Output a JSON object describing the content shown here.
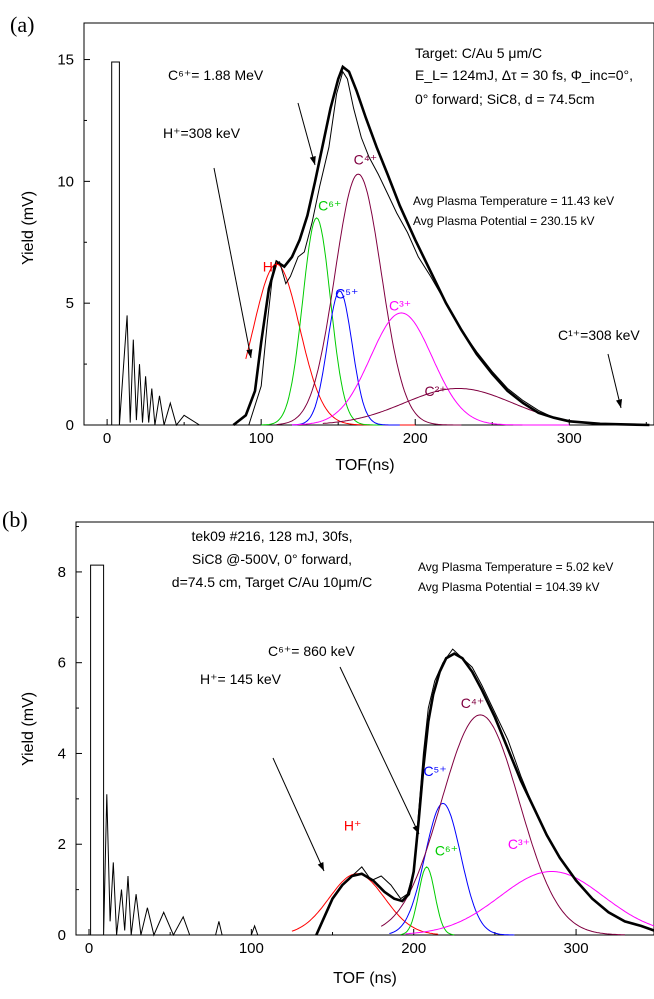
{
  "chart_data": [
    {
      "type": "line",
      "panel_label": "(a)",
      "xlabel": "TOF(ns)",
      "ylabel": "Yield (mV)",
      "xlim": [
        -15,
        355
      ],
      "ylim": [
        0,
        16.5
      ],
      "xticks": [
        0,
        100,
        200,
        300
      ],
      "yticks": [
        0,
        5,
        10,
        15
      ],
      "grid": false,
      "annotations": {
        "target_line1": "Target: C/Au 5 μm/C",
        "target_line2": "E_L= 124mJ, Δτ = 30 fs, Φ_inc=0°,",
        "target_line3": "0° forward; SiC8, d = 74.5cm",
        "avg_temp": "Avg Plasma Temperature = 11.43 keV",
        "avg_pot": "Avg Plasma Potential = 230.15 kV",
        "c6_energy": "C⁶⁺= 1.88 MeV",
        "h_energy": "H⁺=308 keV",
        "c1_energy": "C¹⁺=308 keV"
      },
      "peak_labels": [
        {
          "label": "H⁺",
          "color": "#ff0000",
          "x": 101,
          "y": 6.3
        },
        {
          "label": "C⁶⁺",
          "color": "#00cc00",
          "x": 137,
          "y": 8.8
        },
        {
          "label": "C⁴⁺",
          "color": "#800040",
          "x": 160,
          "y": 10.7
        },
        {
          "label": "C⁵⁺",
          "color": "#0000ff",
          "x": 148,
          "y": 5.2
        },
        {
          "label": "C³⁺",
          "color": "#ff00ff",
          "x": 183,
          "y": 4.7
        },
        {
          "label": "C²⁺",
          "color": "#800040",
          "x": 206,
          "y": 1.2
        }
      ],
      "series": [
        {
          "name": "H⁺",
          "color": "#ff0000",
          "shape": "gaussian",
          "amp": 6.6,
          "center": 110,
          "sigma": 15,
          "range": [
            90,
            200
          ]
        },
        {
          "name": "C⁶⁺",
          "color": "#00cc00",
          "shape": "gaussian",
          "amp": 8.5,
          "center": 136,
          "sigma": 9,
          "range": [
            100,
            180
          ]
        },
        {
          "name": "C⁵⁺",
          "color": "#0000ff",
          "shape": "gaussian",
          "amp": 5.5,
          "center": 151,
          "sigma": 8,
          "range": [
            120,
            190
          ]
        },
        {
          "name": "C⁴⁺",
          "color": "#800040",
          "shape": "gaussian",
          "amp": 10.3,
          "center": 163,
          "sigma": 15,
          "range": [
            110,
            230
          ]
        },
        {
          "name": "C³⁺",
          "color": "#ff00ff",
          "shape": "gaussian",
          "amp": 4.6,
          "center": 191,
          "sigma": 20,
          "range": [
            120,
            300
          ]
        },
        {
          "name": "C²⁺",
          "color": "#800040",
          "shape": "gaussian",
          "amp": 1.5,
          "center": 228,
          "sigma": 35,
          "range": [
            140,
            352
          ]
        }
      ],
      "raw_signal": {
        "color": "#000000",
        "points": [
          [
            -10,
            0
          ],
          [
            3,
            0
          ],
          [
            3,
            14.9
          ],
          [
            8,
            14.9
          ],
          [
            8,
            0
          ],
          [
            13,
            4.5
          ],
          [
            15,
            0.1
          ],
          [
            17,
            3.5
          ],
          [
            19,
            0.2
          ],
          [
            21,
            2.5
          ],
          [
            23,
            0.1
          ],
          [
            25,
            2.0
          ],
          [
            27,
            0.1
          ],
          [
            29,
            1.5
          ],
          [
            31,
            0
          ],
          [
            34,
            1.2
          ],
          [
            37,
            0
          ],
          [
            41,
            0.9
          ],
          [
            45,
            0
          ],
          [
            50,
            0.4
          ],
          [
            60,
            0
          ],
          [
            92,
            0
          ],
          [
            96,
            0.8
          ],
          [
            100,
            1.6
          ],
          [
            104,
            4.2
          ],
          [
            108,
            6.5
          ],
          [
            112,
            6.7
          ],
          [
            116,
            5.8
          ],
          [
            119,
            6.1
          ],
          [
            124,
            6.9
          ],
          [
            128,
            7.1
          ],
          [
            133,
            8.3
          ],
          [
            138,
            9.8
          ],
          [
            144,
            11.4
          ],
          [
            149,
            13.6
          ],
          [
            153,
            14.5
          ],
          [
            156,
            14.2
          ],
          [
            160,
            13.0
          ],
          [
            165,
            11.8
          ],
          [
            170,
            11.0
          ],
          [
            176,
            10.3
          ],
          [
            182,
            9.5
          ],
          [
            188,
            8.7
          ],
          [
            195,
            7.9
          ],
          [
            202,
            6.9
          ],
          [
            210,
            6.1
          ],
          [
            220,
            5.0
          ],
          [
            230,
            3.9
          ],
          [
            240,
            3.0
          ],
          [
            250,
            2.2
          ],
          [
            260,
            1.5
          ],
          [
            270,
            1.0
          ],
          [
            280,
            0.6
          ],
          [
            290,
            0.3
          ],
          [
            300,
            0.15
          ],
          [
            320,
            0.05
          ],
          [
            352,
            0
          ]
        ]
      },
      "total_fit": {
        "color": "#000000",
        "points": [
          [
            82,
            0
          ],
          [
            90,
            0.4
          ],
          [
            96,
            1.4
          ],
          [
            100,
            3.4
          ],
          [
            105,
            5.6
          ],
          [
            110,
            6.7
          ],
          [
            115,
            6.5
          ],
          [
            120,
            6.9
          ],
          [
            125,
            7.6
          ],
          [
            130,
            8.6
          ],
          [
            135,
            10.0
          ],
          [
            140,
            11.5
          ],
          [
            145,
            13.0
          ],
          [
            150,
            14.2
          ],
          [
            153,
            14.7
          ],
          [
            157,
            14.5
          ],
          [
            162,
            13.7
          ],
          [
            168,
            12.6
          ],
          [
            175,
            11.4
          ],
          [
            182,
            10.3
          ],
          [
            190,
            9.0
          ],
          [
            200,
            7.6
          ],
          [
            210,
            6.3
          ],
          [
            220,
            5.0
          ],
          [
            230,
            3.9
          ],
          [
            240,
            2.9
          ],
          [
            250,
            2.1
          ],
          [
            260,
            1.4
          ],
          [
            270,
            0.9
          ],
          [
            280,
            0.5
          ],
          [
            290,
            0.3
          ],
          [
            300,
            0.15
          ],
          [
            320,
            0.05
          ],
          [
            352,
            0
          ]
        ]
      }
    },
    {
      "type": "line",
      "panel_label": "(b)",
      "xlabel": "TOF (ns)",
      "ylabel": "Yield (mV)",
      "xlim": [
        -8,
        348
      ],
      "ylim": [
        0,
        9.1
      ],
      "xticks": [
        0,
        100,
        200,
        300
      ],
      "yticks": [
        0,
        2,
        4,
        6,
        8
      ],
      "grid": false,
      "annotations": {
        "shot_line1": "tek09 #216, 128 mJ, 30fs,",
        "shot_line2": "SiC8 @-500V, 0° forward,",
        "shot_line3": "d=74.5 cm, Target C/Au 10μm/C",
        "avg_temp": "Avg Plasma Temperature = 5.02 keV",
        "avg_pot": "Avg Plasma Potential = 104.39 kV",
        "c6_energy": "C⁶⁺= 860 keV",
        "h_energy": "H⁺= 145 keV"
      },
      "peak_labels": [
        {
          "label": "H⁺",
          "color": "#ff0000",
          "x": 157,
          "y": 2.3
        },
        {
          "label": "C⁵⁺",
          "color": "#0000ff",
          "x": 206,
          "y": 3.5
        },
        {
          "label": "C⁶⁺",
          "color": "#00cc00",
          "x": 213,
          "y": 1.75
        },
        {
          "label": "C⁴⁺",
          "color": "#800040",
          "x": 229,
          "y": 5.0
        },
        {
          "label": "C³⁺",
          "color": "#ff00ff",
          "x": 258,
          "y": 1.9
        }
      ],
      "series": [
        {
          "name": "H⁺",
          "color": "#ff0000",
          "shape": "gaussian",
          "amp": 1.35,
          "center": 165,
          "sigma": 17,
          "range": [
            125,
            215
          ]
        },
        {
          "name": "C⁶⁺",
          "color": "#00cc00",
          "shape": "gaussian",
          "amp": 1.5,
          "center": 208,
          "sigma": 5,
          "range": [
            192,
            225
          ]
        },
        {
          "name": "C⁵⁺",
          "color": "#0000ff",
          "shape": "gaussian",
          "amp": 2.9,
          "center": 218,
          "sigma": 11,
          "range": [
            185,
            262
          ]
        },
        {
          "name": "C⁴⁺",
          "color": "#800040",
          "shape": "gaussian",
          "amp": 4.85,
          "center": 241,
          "sigma": 24,
          "range": [
            180,
            330
          ]
        },
        {
          "name": "C³⁺",
          "color": "#ff00ff",
          "shape": "gaussian",
          "amp": 1.4,
          "center": 285,
          "sigma": 32,
          "range": [
            195,
            348
          ]
        }
      ],
      "raw_signal": {
        "color": "#000000",
        "points": [
          [
            -8,
            0
          ],
          [
            1,
            0
          ],
          [
            1,
            8.15
          ],
          [
            9,
            8.15
          ],
          [
            9,
            0
          ],
          [
            11,
            3.1
          ],
          [
            13,
            0.3
          ],
          [
            15,
            1.6
          ],
          [
            17,
            0
          ],
          [
            20,
            1.0
          ],
          [
            22,
            0.1
          ],
          [
            24,
            1.3
          ],
          [
            26,
            0
          ],
          [
            29,
            0.9
          ],
          [
            32,
            0
          ],
          [
            36,
            0.6
          ],
          [
            40,
            0
          ],
          [
            46,
            0.5
          ],
          [
            52,
            0
          ],
          [
            58,
            0.4
          ],
          [
            62,
            0
          ],
          [
            78,
            0
          ],
          [
            80,
            0.3
          ],
          [
            82,
            0
          ],
          [
            100,
            0
          ],
          [
            102,
            0.2
          ],
          [
            104,
            0
          ],
          [
            140,
            0
          ],
          [
            144,
            0.3
          ],
          [
            150,
            0.8
          ],
          [
            156,
            1.1
          ],
          [
            162,
            1.3
          ],
          [
            168,
            1.5
          ],
          [
            174,
            1.2
          ],
          [
            180,
            1.3
          ],
          [
            186,
            1.1
          ],
          [
            192,
            0.8
          ],
          [
            196,
            0.9
          ],
          [
            200,
            1.4
          ],
          [
            203,
            2.7
          ],
          [
            206,
            4.0
          ],
          [
            209,
            5.0
          ],
          [
            213,
            5.6
          ],
          [
            218,
            6.0
          ],
          [
            224,
            6.3
          ],
          [
            230,
            6.1
          ],
          [
            236,
            5.9
          ],
          [
            242,
            5.5
          ],
          [
            250,
            4.9
          ],
          [
            258,
            4.3
          ],
          [
            266,
            3.5
          ],
          [
            274,
            2.8
          ],
          [
            282,
            2.2
          ],
          [
            290,
            1.7
          ],
          [
            300,
            1.2
          ],
          [
            310,
            0.8
          ],
          [
            320,
            0.5
          ],
          [
            330,
            0.3
          ],
          [
            340,
            0.2
          ],
          [
            348,
            0.1
          ]
        ]
      },
      "total_fit": {
        "color": "#000000",
        "points": [
          [
            140,
            0
          ],
          [
            145,
            0.4
          ],
          [
            150,
            0.8
          ],
          [
            156,
            1.1
          ],
          [
            162,
            1.3
          ],
          [
            168,
            1.35
          ],
          [
            175,
            1.2
          ],
          [
            182,
            0.95
          ],
          [
            188,
            0.8
          ],
          [
            193,
            0.75
          ],
          [
            197,
            0.9
          ],
          [
            200,
            1.4
          ],
          [
            203,
            2.5
          ],
          [
            206,
            3.7
          ],
          [
            209,
            4.7
          ],
          [
            212,
            5.3
          ],
          [
            216,
            5.8
          ],
          [
            220,
            6.1
          ],
          [
            225,
            6.2
          ],
          [
            230,
            6.1
          ],
          [
            236,
            5.8
          ],
          [
            242,
            5.4
          ],
          [
            250,
            4.8
          ],
          [
            258,
            4.1
          ],
          [
            266,
            3.4
          ],
          [
            274,
            2.8
          ],
          [
            282,
            2.2
          ],
          [
            290,
            1.7
          ],
          [
            300,
            1.2
          ],
          [
            310,
            0.8
          ],
          [
            320,
            0.5
          ],
          [
            330,
            0.3
          ],
          [
            340,
            0.2
          ],
          [
            348,
            0.1
          ]
        ]
      }
    }
  ]
}
